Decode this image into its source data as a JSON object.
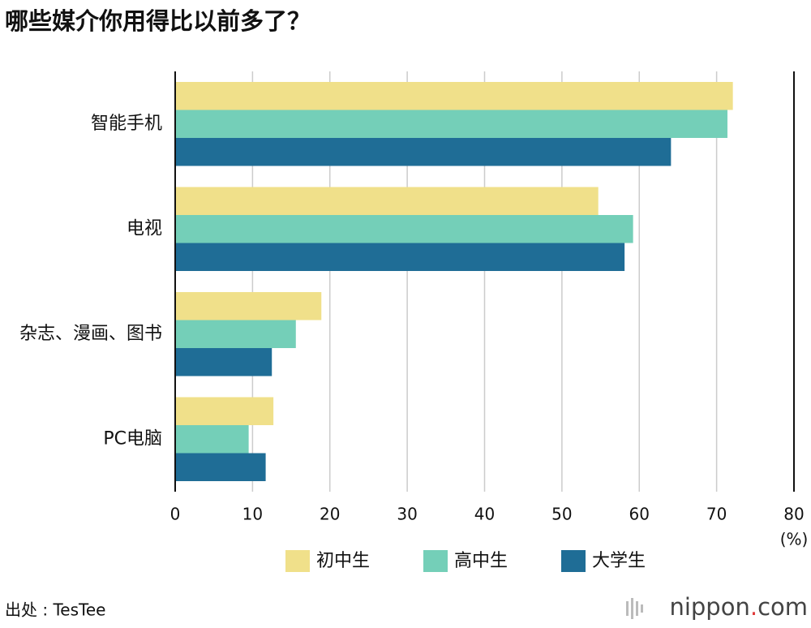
{
  "chart_data": {
    "type": "barh",
    "title": "哪些媒介你用得比以前多了？",
    "categories": [
      "智能手机",
      "电视",
      "杂志、漫画、图书",
      "PC电脑"
    ],
    "series": [
      {
        "name": "初中生",
        "color": "#f0e08a",
        "values": [
          72.1,
          54.7,
          18.9,
          12.7
        ]
      },
      {
        "name": "高中生",
        "color": "#74cfb8",
        "values": [
          71.4,
          59.2,
          15.6,
          9.5
        ]
      },
      {
        "name": "大学生",
        "color": "#1f6d96",
        "values": [
          64.1,
          58.1,
          12.5,
          11.7
        ]
      }
    ],
    "xlim": [
      0,
      80
    ],
    "xticks": [
      0,
      10,
      20,
      30,
      40,
      50,
      60,
      70,
      80
    ],
    "x_unit": "(%)",
    "grid": true,
    "legend": "bottom",
    "source": "出处 : TesTee",
    "logo": [
      "nippon",
      ".",
      "com"
    ]
  }
}
